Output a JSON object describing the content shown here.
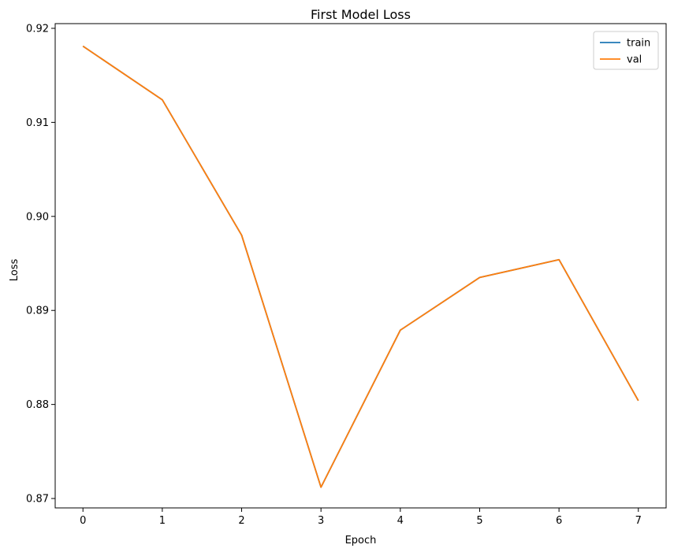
{
  "chart_data": {
    "type": "line",
    "title": "First Model Loss",
    "xlabel": "Epoch",
    "ylabel": "Loss",
    "x": [
      0,
      1,
      2,
      3,
      4,
      5,
      6,
      7
    ],
    "xlim": [
      -0.35,
      7.35
    ],
    "ylim": [
      0.869,
      0.9205
    ],
    "xticks": [
      "0",
      "1",
      "2",
      "3",
      "4",
      "5",
      "6",
      "7"
    ],
    "yticks": [
      "0.87",
      "0.88",
      "0.89",
      "0.90",
      "0.91",
      "0.92"
    ],
    "grid": false,
    "legend_position": "top-right",
    "series": [
      {
        "name": "train",
        "color": "#1f77b4",
        "values": [
          0.9181,
          0.9124,
          0.898,
          0.8712,
          0.8879,
          0.8935,
          0.8954,
          0.8804
        ]
      },
      {
        "name": "val",
        "color": "#ff7f0e",
        "values": [
          0.9181,
          0.9124,
          0.898,
          0.8712,
          0.8879,
          0.8935,
          0.8954,
          0.8804
        ]
      }
    ]
  }
}
